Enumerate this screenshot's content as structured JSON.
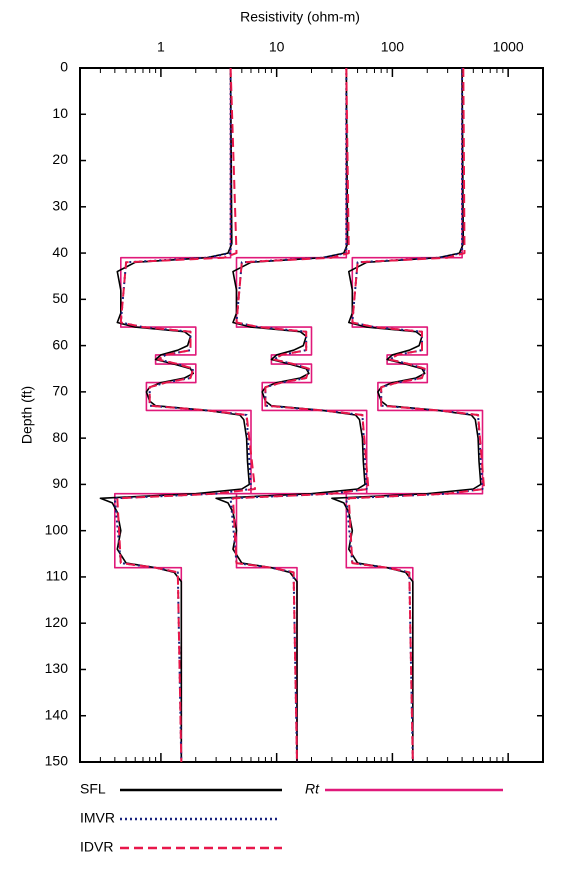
{
  "chart_data": {
    "type": "log-track",
    "x_label": "Resistivity (ohm-m)",
    "y_label": "Depth (ft)",
    "x_scale": "log",
    "xlim": [
      0.2,
      2000
    ],
    "xticks": [
      1,
      10,
      100,
      1000
    ],
    "ylim": [
      0,
      150
    ],
    "yticks": [
      0,
      10,
      20,
      30,
      40,
      50,
      60,
      70,
      80,
      90,
      100,
      110,
      120,
      130,
      140,
      150
    ],
    "series": [
      {
        "name": "Rt",
        "color": "#e0197a",
        "style": "solid",
        "depth": [
          0,
          41,
          41,
          56,
          56,
          62,
          62,
          64,
          64,
          68,
          68,
          74,
          74,
          92,
          92,
          108,
          108,
          150
        ],
        "values": [
          [
            4,
            4,
            0.45,
            0.45,
            2,
            2,
            0.9,
            0.9,
            2,
            2,
            0.75,
            0.75,
            6,
            6,
            0.4,
            0.4,
            1.5,
            1.5
          ],
          [
            40,
            40,
            4.5,
            4.5,
            20,
            20,
            9,
            9,
            20,
            20,
            7.5,
            7.5,
            60,
            60,
            4.5,
            4.5,
            15,
            15
          ],
          [
            400,
            400,
            45,
            45,
            200,
            200,
            90,
            90,
            200,
            200,
            75,
            75,
            600,
            600,
            40,
            40,
            150,
            150
          ]
        ]
      },
      {
        "name": "SFL",
        "color": "#000000",
        "style": "solid",
        "depth": [
          0,
          38,
          40,
          41,
          42,
          44,
          48,
          53,
          55,
          56,
          57,
          58,
          60,
          61,
          62,
          63,
          64,
          65,
          66,
          67,
          68,
          69,
          70,
          72,
          73,
          74,
          75,
          76,
          80,
          85,
          90,
          91,
          92,
          93,
          94,
          96,
          100,
          104,
          107,
          108,
          109,
          111,
          115,
          120,
          150
        ],
        "values": [
          [
            4,
            4.1,
            3.8,
            2.5,
            0.6,
            0.42,
            0.45,
            0.45,
            0.42,
            0.6,
            1.6,
            1.8,
            1.7,
            1.4,
            1.0,
            0.9,
            1.3,
            1.8,
            1.9,
            1.6,
            1.0,
            0.8,
            0.75,
            0.8,
            0.9,
            2.5,
            4.8,
            5.2,
            5.5,
            5.6,
            5.8,
            5.0,
            2.0,
            0.3,
            0.38,
            0.42,
            0.45,
            0.42,
            0.5,
            0.9,
            1.3,
            1.5,
            1.5,
            1.5,
            1.5
          ],
          [
            40,
            41,
            38,
            25,
            6,
            4.2,
            4.5,
            4.5,
            4.2,
            6,
            16,
            18,
            17,
            14,
            10,
            9,
            13,
            18,
            19,
            16,
            10,
            8,
            7.5,
            8,
            9,
            25,
            48,
            52,
            55,
            56,
            58,
            50,
            20,
            3,
            3.8,
            4.2,
            4.5,
            4.2,
            5,
            9,
            13,
            15,
            15,
            15,
            15
          ],
          [
            400,
            410,
            380,
            250,
            60,
            42,
            45,
            45,
            42,
            60,
            160,
            180,
            170,
            140,
            100,
            90,
            130,
            180,
            190,
            160,
            100,
            80,
            75,
            80,
            90,
            250,
            480,
            520,
            550,
            560,
            580,
            500,
            200,
            30,
            38,
            42,
            45,
            42,
            50,
            90,
            130,
            150,
            150,
            150,
            150
          ]
        ]
      },
      {
        "name": "IMVR",
        "color": "#1a237e",
        "style": "dotted",
        "depth": [
          0,
          40,
          41,
          42,
          55,
          56,
          57,
          61,
          62,
          63,
          64,
          65,
          67,
          68,
          69,
          73,
          74,
          75,
          91,
          92,
          93,
          107,
          108,
          109,
          150
        ],
        "values": [
          [
            4,
            4,
            2.5,
            0.5,
            0.45,
            0.7,
            1.8,
            1.8,
            1.1,
            0.95,
            1.4,
            1.9,
            1.8,
            1.1,
            0.8,
            0.8,
            2.5,
            5.5,
            6,
            3,
            0.4,
            0.45,
            0.9,
            1.4,
            1.5
          ],
          [
            40,
            40,
            25,
            5,
            4.5,
            7,
            18,
            18,
            11,
            9.5,
            14,
            19,
            18,
            11,
            8,
            8,
            25,
            55,
            60,
            30,
            4,
            4.5,
            9,
            14,
            15
          ],
          [
            400,
            400,
            250,
            50,
            45,
            70,
            180,
            180,
            110,
            95,
            140,
            190,
            180,
            110,
            80,
            80,
            250,
            550,
            600,
            300,
            40,
            45,
            90,
            140,
            150
          ]
        ]
      },
      {
        "name": "IDVR",
        "color": "#e8174a",
        "style": "dashed",
        "depth": [
          0,
          40,
          41,
          42,
          55,
          56,
          57,
          61,
          62,
          63,
          64,
          65,
          67,
          68,
          69,
          73,
          74,
          75,
          91,
          92,
          93,
          107,
          108,
          109,
          150
        ],
        "values": [
          [
            4,
            4.5,
            3.5,
            0.5,
            0.45,
            0.7,
            1.8,
            1.8,
            1.1,
            0.95,
            1.4,
            1.9,
            1.8,
            1.1,
            0.8,
            0.8,
            2.5,
            5.5,
            6.5,
            3,
            0.42,
            0.45,
            0.9,
            1.4,
            1.5
          ],
          [
            40,
            42,
            30,
            5,
            4.5,
            7,
            18,
            18,
            11,
            9.5,
            14,
            19,
            18,
            11,
            8,
            8,
            25,
            55,
            62,
            30,
            4.2,
            4.5,
            9,
            14,
            15
          ],
          [
            410,
            420,
            300,
            50,
            45,
            70,
            180,
            180,
            110,
            95,
            140,
            190,
            180,
            110,
            80,
            80,
            250,
            550,
            620,
            300,
            42,
            45,
            90,
            140,
            150
          ]
        ]
      }
    ]
  }
}
